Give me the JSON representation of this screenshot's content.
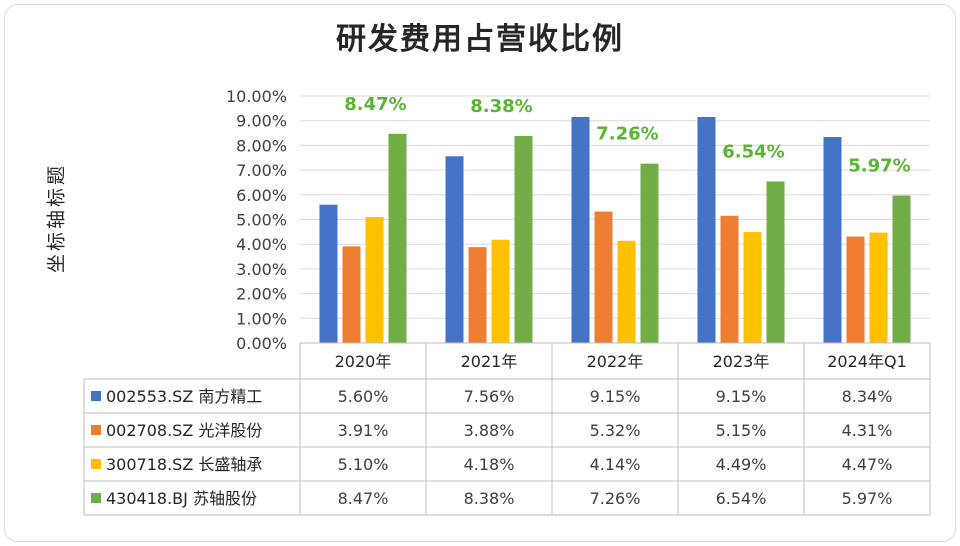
{
  "chart_data": {
    "type": "bar",
    "title": "研发费用占营收比例",
    "ylabel": "坐标轴标题",
    "xlabel": "",
    "categories": [
      "2020年",
      "2021年",
      "2022年",
      "2023年",
      "2024年Q1"
    ],
    "ylim": [
      0,
      10
    ],
    "ytick_labels": [
      "0.00%",
      "1.00%",
      "2.00%",
      "3.00%",
      "4.00%",
      "5.00%",
      "6.00%",
      "7.00%",
      "8.00%",
      "9.00%",
      "10.00%"
    ],
    "grid": true,
    "legend": "data-table-below",
    "series": [
      {
        "name": "002553.SZ 南方精工",
        "color": "#4472c4",
        "values": [
          5.6,
          7.56,
          9.15,
          9.15,
          8.34
        ],
        "table_values": [
          "5.60%",
          "7.56%",
          "9.15%",
          "9.15%",
          "8.34%"
        ]
      },
      {
        "name": "002708.SZ 光洋股份",
        "color": "#ed7d31",
        "values": [
          3.91,
          3.88,
          5.32,
          5.15,
          4.31
        ],
        "table_values": [
          "3.91%",
          "3.88%",
          "5.32%",
          "5.15%",
          "4.31%"
        ]
      },
      {
        "name": "300718.SZ 长盛轴承",
        "color": "#ffc000",
        "values": [
          5.1,
          4.18,
          4.14,
          4.49,
          4.47
        ],
        "table_values": [
          "5.10%",
          "4.18%",
          "4.14%",
          "4.49%",
          "4.47%"
        ]
      },
      {
        "name": "430418.BJ 苏轴股份",
        "color": "#70ad47",
        "values": [
          8.47,
          8.38,
          7.26,
          6.54,
          5.97
        ],
        "table_values": [
          "8.47%",
          "8.38%",
          "7.26%",
          "6.54%",
          "5.97%"
        ]
      }
    ],
    "annotations": {
      "series_index": 3,
      "labels": [
        "8.47%",
        "8.38%",
        "7.26%",
        "6.54%",
        "5.97%"
      ],
      "color": "#5ab532"
    }
  }
}
